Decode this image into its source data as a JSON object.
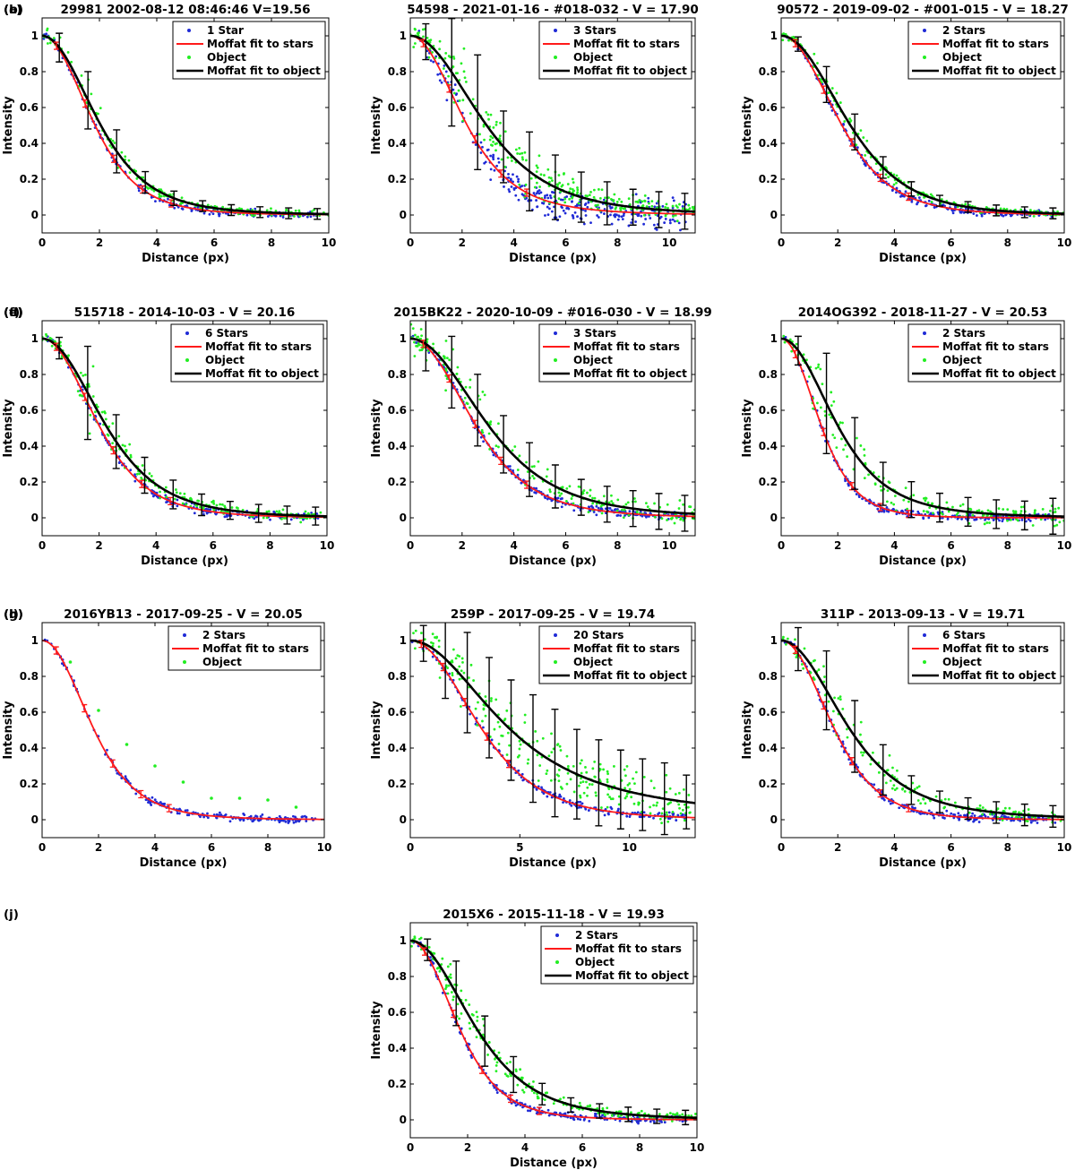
{
  "figure": {
    "colors": {
      "stars": "#1f2ad6",
      "stars_fit": "#ff1a1a",
      "object": "#22ee22",
      "object_fit": "#000000"
    }
  },
  "chart_data": [
    {
      "label": "(a)",
      "type": "scatter",
      "title": "29981 2002-08-12 08:46:46 V=19.56",
      "xlabel": "Distance (px)",
      "ylabel": "Intensity",
      "xlim": [
        0,
        10
      ],
      "ylim": [
        -0.1,
        1.1
      ],
      "xticks": [
        0,
        2,
        4,
        6,
        8,
        10
      ],
      "yticks": [
        0,
        0.2,
        0.4,
        0.6,
        0.8,
        1
      ],
      "legend": [
        "1 Star",
        "Moffat fit to stars",
        "Object",
        "Moffat fit to object"
      ],
      "legend_position": "top-right",
      "series": [
        {
          "name": "Moffat fit to stars",
          "hwhm": 1.85,
          "beta": 2.8
        },
        {
          "name": "Moffat fit to object",
          "hwhm": 2.05,
          "beta": 2.4
        }
      ],
      "error_bars": {
        "x": [
          0.6,
          1.6,
          2.6,
          3.6,
          4.6,
          5.6,
          6.6,
          7.6,
          8.6,
          9.6
        ],
        "err": [
          0.08,
          0.16,
          0.12,
          0.06,
          0.04,
          0.03,
          0.03,
          0.03,
          0.03,
          0.03
        ]
      }
    },
    {
      "label": "(b)",
      "type": "scatter",
      "title": "54598 - 2021-01-16 - #018-032 - V = 17.90",
      "xlabel": "Distance (px)",
      "ylabel": "Intensity",
      "xlim": [
        0,
        11
      ],
      "ylim": [
        -0.1,
        1.1
      ],
      "xticks": [
        0,
        2,
        4,
        6,
        8,
        10
      ],
      "yticks": [
        0,
        0.2,
        0.4,
        0.6,
        0.8,
        1
      ],
      "legend": [
        "3 Stars",
        "Moffat fit to stars",
        "Object",
        "Moffat fit to object"
      ],
      "legend_position": "top-right",
      "series": [
        {
          "name": "Moffat fit to stars",
          "hwhm": 2.2,
          "beta": 2.3
        },
        {
          "name": "Moffat fit to object",
          "hwhm": 2.95,
          "beta": 2.2
        }
      ],
      "error_bars": {
        "x": [
          0.6,
          1.6,
          2.6,
          3.6,
          4.6,
          5.6,
          6.6,
          7.6,
          8.6,
          9.6,
          10.6
        ],
        "err": [
          0.1,
          0.3,
          0.32,
          0.2,
          0.22,
          0.18,
          0.14,
          0.12,
          0.1,
          0.1,
          0.1
        ]
      }
    },
    {
      "label": "(c)",
      "type": "scatter",
      "title": "90572 - 2019-09-02 - #001-015 - V = 18.27",
      "xlabel": "Distance (px)",
      "ylabel": "Intensity",
      "xlim": [
        0,
        10
      ],
      "ylim": [
        -0.1,
        1.1
      ],
      "xticks": [
        0,
        2,
        4,
        6,
        8,
        10
      ],
      "yticks": [
        0,
        0.2,
        0.4,
        0.6,
        0.8,
        1
      ],
      "legend": [
        "2 Stars",
        "Moffat fit to stars",
        "Object",
        "Moffat fit to object"
      ],
      "legend_position": "top-right",
      "series": [
        {
          "name": "Moffat fit to stars",
          "hwhm": 2.15,
          "beta": 3.0
        },
        {
          "name": "Moffat fit to object",
          "hwhm": 2.45,
          "beta": 2.8
        }
      ],
      "error_bars": {
        "x": [
          0.6,
          1.6,
          2.6,
          3.6,
          4.6,
          5.6,
          6.6,
          7.6,
          8.6,
          9.6
        ],
        "err": [
          0.04,
          0.1,
          0.1,
          0.06,
          0.04,
          0.03,
          0.03,
          0.03,
          0.03,
          0.03
        ]
      }
    },
    {
      "label": "(d)",
      "type": "scatter",
      "title": "515718 - 2014-10-03 - V = 20.16",
      "xlabel": "Distance (px)",
      "ylabel": "Intensity",
      "xlim": [
        0,
        10
      ],
      "ylim": [
        -0.1,
        1.1
      ],
      "xticks": [
        0,
        2,
        4,
        6,
        8,
        10
      ],
      "yticks": [
        0,
        0.2,
        0.4,
        0.6,
        0.8,
        1
      ],
      "legend": [
        "6 Stars",
        "Moffat fit to stars",
        "Object",
        "Moffat fit to object"
      ],
      "legend_position": "top-right",
      "series": [
        {
          "name": "Moffat fit to stars",
          "hwhm": 2.05,
          "beta": 2.7
        },
        {
          "name": "Moffat fit to object",
          "hwhm": 2.3,
          "beta": 2.4
        }
      ],
      "error_bars": {
        "x": [
          0.6,
          1.6,
          2.6,
          3.6,
          4.6,
          5.6,
          6.6,
          7.6,
          8.6,
          9.6
        ],
        "err": [
          0.06,
          0.26,
          0.15,
          0.1,
          0.08,
          0.06,
          0.05,
          0.05,
          0.05,
          0.05
        ]
      }
    },
    {
      "label": "(e)",
      "type": "scatter",
      "title": "2015BK22 - 2020-10-09 - #016-030 - V = 18.99",
      "xlabel": "Distance (px)",
      "ylabel": "Intensity",
      "xlim": [
        0,
        11
      ],
      "ylim": [
        -0.1,
        1.1
      ],
      "xticks": [
        0,
        2,
        4,
        6,
        8,
        10
      ],
      "yticks": [
        0,
        0.2,
        0.4,
        0.6,
        0.8,
        1
      ],
      "legend": [
        "3 Stars",
        "Moffat fit to stars",
        "Object",
        "Moffat fit to object"
      ],
      "legend_position": "top-right",
      "series": [
        {
          "name": "Moffat fit to stars",
          "hwhm": 2.6,
          "beta": 2.6
        },
        {
          "name": "Moffat fit to object",
          "hwhm": 3.1,
          "beta": 2.2
        }
      ],
      "error_bars": {
        "x": [
          0.6,
          1.6,
          2.6,
          3.6,
          4.6,
          5.6,
          6.6,
          7.6,
          8.6,
          9.6,
          10.6
        ],
        "err": [
          0.15,
          0.2,
          0.2,
          0.16,
          0.15,
          0.12,
          0.1,
          0.1,
          0.1,
          0.1,
          0.1
        ]
      }
    },
    {
      "label": "(f)",
      "type": "scatter",
      "title": "2014OG392 - 2018-11-27 - V = 20.53",
      "xlabel": "Distance (px)",
      "ylabel": "Intensity",
      "xlim": [
        0,
        10
      ],
      "ylim": [
        -0.1,
        1.1
      ],
      "xticks": [
        0,
        2,
        4,
        6,
        8,
        10
      ],
      "yticks": [
        0,
        0.2,
        0.4,
        0.6,
        0.8,
        1
      ],
      "legend": [
        "2 Stars",
        "Moffat fit to stars",
        "Object",
        "Moffat fit to object"
      ],
      "legend_position": "top-right",
      "series": [
        {
          "name": "Moffat fit to stars",
          "hwhm": 1.45,
          "beta": 3.2
        },
        {
          "name": "Moffat fit to object",
          "hwhm": 2.05,
          "beta": 2.1
        }
      ],
      "error_bars": {
        "x": [
          0.6,
          1.6,
          2.6,
          3.6,
          4.6,
          5.6,
          6.6,
          7.6,
          8.6,
          9.6
        ],
        "err": [
          0.08,
          0.28,
          0.2,
          0.12,
          0.1,
          0.08,
          0.08,
          0.08,
          0.08,
          0.1
        ]
      }
    },
    {
      "label": "(g)",
      "type": "scatter",
      "title": "2016YB13 - 2017-09-25 - V = 20.05",
      "xlabel": "Distance (px)",
      "ylabel": "Intensity",
      "xlim": [
        0,
        10
      ],
      "ylim": [
        -0.1,
        1.1
      ],
      "xticks": [
        0,
        2,
        4,
        6,
        8,
        10
      ],
      "yticks": [
        0,
        0.2,
        0.4,
        0.6,
        0.8,
        1
      ],
      "legend": [
        "2 Stars",
        "Moffat fit to stars",
        "Object"
      ],
      "legend_position": "top-right",
      "series": [
        {
          "name": "Moffat fit to stars",
          "hwhm": 1.85,
          "beta": 2.8
        }
      ],
      "object_points": [
        [
          1,
          0.88
        ],
        [
          2,
          0.61
        ],
        [
          3,
          0.42
        ],
        [
          4,
          0.3
        ],
        [
          5,
          0.21
        ],
        [
          6,
          0.12
        ],
        [
          7,
          0.12
        ],
        [
          8,
          0.11
        ],
        [
          9,
          0.07
        ]
      ]
    },
    {
      "label": "(h)",
      "type": "scatter",
      "title": "259P - 2017-09-25 - V = 19.74",
      "xlabel": "Distance (px)",
      "ylabel": "Intensity",
      "xlim": [
        0,
        13
      ],
      "ylim": [
        -0.1,
        1.1
      ],
      "xticks": [
        0,
        5,
        10
      ],
      "yticks": [
        0,
        0.2,
        0.4,
        0.6,
        0.8,
        1
      ],
      "legend": [
        "20 Stars",
        "Moffat fit to stars",
        "Object",
        "Moffat fit to object"
      ],
      "legend_position": "top-right",
      "series": [
        {
          "name": "Moffat fit to stars",
          "hwhm": 3.3,
          "beta": 2.5
        },
        {
          "name": "Moffat fit to object",
          "hwhm": 4.6,
          "beta": 1.2
        }
      ],
      "error_bars": {
        "x": [
          0.6,
          1.6,
          2.6,
          3.6,
          4.6,
          5.6,
          6.6,
          7.6,
          8.6,
          9.6,
          10.6,
          11.6,
          12.6
        ],
        "err": [
          0.1,
          0.22,
          0.28,
          0.28,
          0.28,
          0.3,
          0.3,
          0.25,
          0.24,
          0.22,
          0.2,
          0.2,
          0.15
        ]
      }
    },
    {
      "label": "(i)",
      "type": "scatter",
      "title": "311P - 2013-09-13 - V = 19.71",
      "xlabel": "Distance (px)",
      "ylabel": "Intensity",
      "xlim": [
        0,
        10
      ],
      "ylim": [
        -0.1,
        1.1
      ],
      "xticks": [
        0,
        2,
        4,
        6,
        8,
        10
      ],
      "yticks": [
        0,
        0.2,
        0.4,
        0.6,
        0.8,
        1
      ],
      "legend": [
        "6 Stars",
        "Moffat fit to stars",
        "Object",
        "Moffat fit to object"
      ],
      "legend_position": "top-right",
      "series": [
        {
          "name": "Moffat fit to stars",
          "hwhm": 1.9,
          "beta": 3.2
        },
        {
          "name": "Moffat fit to object",
          "hwhm": 2.45,
          "beta": 2.0
        }
      ],
      "error_bars": {
        "x": [
          0.6,
          1.6,
          2.6,
          3.6,
          4.6,
          5.6,
          6.6,
          7.6,
          8.6,
          9.6
        ],
        "err": [
          0.12,
          0.22,
          0.2,
          0.14,
          0.08,
          0.06,
          0.06,
          0.06,
          0.06,
          0.06
        ]
      }
    },
    {
      "label": "(j)",
      "type": "scatter",
      "title": "2015X6 - 2015-11-18 - V = 19.93",
      "xlabel": "Distance (px)",
      "ylabel": "Intensity",
      "xlim": [
        0,
        10
      ],
      "ylim": [
        -0.1,
        1.1
      ],
      "xticks": [
        0,
        2,
        4,
        6,
        8,
        10
      ],
      "yticks": [
        0,
        0.2,
        0.4,
        0.6,
        0.8,
        1
      ],
      "legend": [
        "2 Stars",
        "Moffat fit to stars",
        "Object",
        "Moffat fit to object"
      ],
      "legend_position": "top-right",
      "series": [
        {
          "name": "Moffat fit to stars",
          "hwhm": 1.75,
          "beta": 3.0
        },
        {
          "name": "Moffat fit to object",
          "hwhm": 2.35,
          "beta": 2.2
        }
      ],
      "error_bars": {
        "x": [
          0.6,
          1.6,
          2.6,
          3.6,
          4.6,
          5.6,
          6.6,
          7.6,
          8.6,
          9.6
        ],
        "err": [
          0.06,
          0.18,
          0.14,
          0.1,
          0.06,
          0.04,
          0.04,
          0.04,
          0.04,
          0.04
        ]
      }
    }
  ]
}
